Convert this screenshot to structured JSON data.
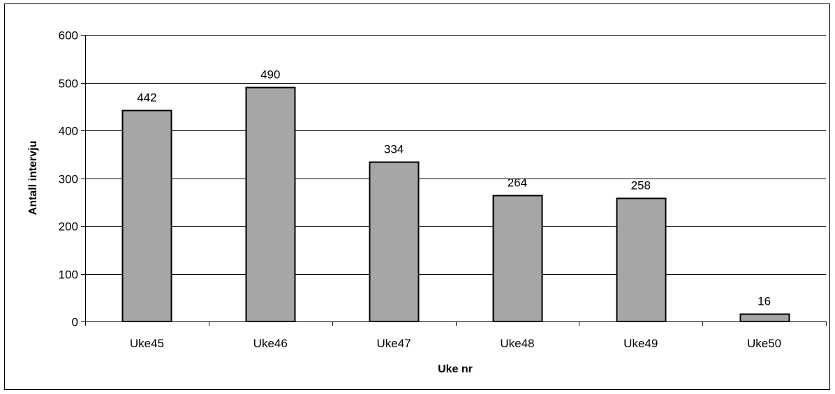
{
  "chart_data": {
    "type": "bar",
    "title": "",
    "xlabel": "Uke nr",
    "ylabel": "Antall intervju",
    "categories": [
      "Uke45",
      "Uke46",
      "Uke47",
      "Uke48",
      "Uke49",
      "Uke50"
    ],
    "values": [
      442,
      490,
      334,
      264,
      258,
      16
    ],
    "data_labels": [
      "442",
      "490",
      "334",
      "264",
      "258",
      "16"
    ],
    "ylim": [
      0,
      600
    ],
    "yticks": [
      0,
      100,
      200,
      300,
      400,
      500,
      600
    ],
    "ytick_labels": [
      "0",
      "100",
      "200",
      "300",
      "400",
      "500",
      "600"
    ],
    "grid": true,
    "legend": "none",
    "colors": {
      "bar_fill": "#a6a6a6",
      "bar_stroke": "#000000",
      "gridline": "#000000",
      "background": "#ffffff"
    }
  }
}
